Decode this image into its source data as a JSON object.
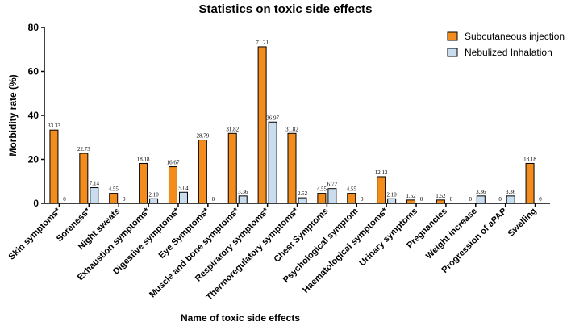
{
  "chart_data": {
    "type": "bar",
    "title": "Statistics on toxic side effects",
    "xlabel": "Name of toxic side effects",
    "ylabel": "Morbidity rate (%)",
    "ylim": [
      0,
      80
    ],
    "yticks": [
      0,
      20,
      40,
      60,
      80
    ],
    "grid": false,
    "legend_position": "top-right",
    "categories": [
      "Skin symptoms*",
      "Soreness*",
      "Night sweats",
      "Exhaustion symptoms*",
      "Digestive symptoms*",
      "Eye Symptoms*",
      "Muscle and bone symptoms*",
      "Respiratory symptoms*",
      "Thermoregulatory symptoms*",
      "Chest Symptoms",
      "Psychological symptom",
      "Haematological symptoms*",
      "Urinary symptoms",
      "Pregnancies",
      "Weight increase",
      "Progression of aPAP",
      "Swelling"
    ],
    "series": [
      {
        "name": "Subcutaneous injection",
        "color": "#F28C1C",
        "values": [
          33.33,
          22.73,
          4.55,
          18.18,
          16.67,
          28.79,
          31.82,
          71.21,
          31.82,
          4.55,
          4.55,
          12.12,
          1.52,
          1.52,
          0,
          0,
          18.18
        ],
        "labels": [
          "33.33",
          "22.73",
          "4.55",
          "18.18",
          "16.67",
          "28.79",
          "31.82",
          "71.21",
          "31.82",
          "4.55",
          "4.55",
          "12.12",
          "1.52",
          "1.52",
          "0",
          "0",
          "18.18"
        ]
      },
      {
        "name": "Nebulized Inhalation",
        "color": "#C9DDEF",
        "values": [
          0,
          7.14,
          0,
          2.1,
          5.04,
          0,
          3.36,
          36.97,
          2.52,
          6.72,
          0,
          2.1,
          0,
          0,
          3.36,
          3.36,
          0
        ],
        "labels": [
          "0",
          "7.14",
          "0",
          "2.10",
          "5.04",
          "0",
          "3.36",
          "36.97",
          "2.52",
          "6.72",
          "0",
          "2.10",
          "0",
          "0",
          "3.36",
          "3.36",
          "0"
        ]
      }
    ]
  }
}
